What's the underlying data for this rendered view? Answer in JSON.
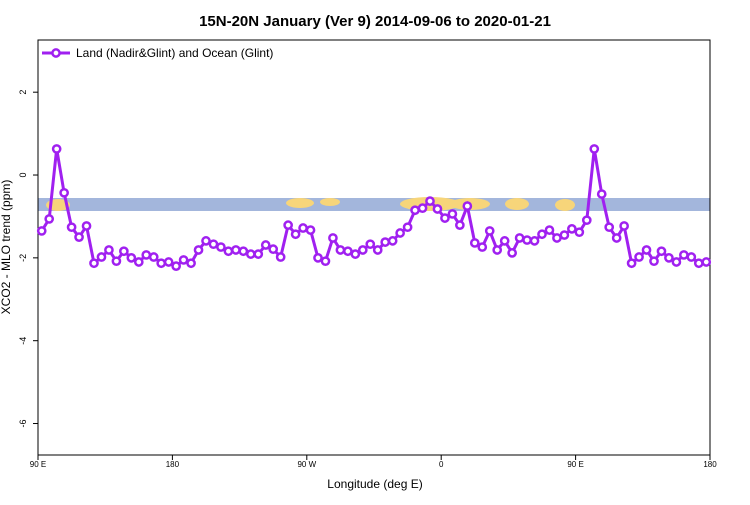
{
  "chart_data": {
    "type": "line",
    "title": "15N-20N January (Ver 9)   2014-09-06 to 2020-01-21",
    "x_label": "Longitude (deg E)",
    "y_label": "XCO2 - MLO trend (ppm)",
    "x": [
      92.5,
      97.5,
      102.5,
      107.5,
      112.5,
      117.5,
      122.5,
      127.5,
      132.5,
      137.5,
      142.5,
      147.5,
      152.5,
      157.5,
      162.5,
      167.5,
      172.5,
      177.5,
      182.5,
      187.5,
      192.5,
      197.5,
      202.5,
      207.5,
      212.5,
      217.5,
      222.5,
      227.5,
      232.5,
      237.5,
      242.5,
      247.5,
      252.5,
      257.5,
      262.5,
      267.5,
      272.5,
      277.5,
      282.5,
      287.5,
      292.5,
      297.5,
      302.5,
      307.5,
      312.5,
      317.5,
      322.5,
      327.5,
      332.5,
      337.5,
      342.5,
      347.5,
      352.5,
      357.5,
      362.5,
      367.5,
      372.5,
      377.5,
      382.5,
      387.5,
      392.5,
      397.5,
      402.5,
      407.5,
      412.5,
      417.5,
      422.5,
      427.5,
      432.5,
      437.5,
      442.5,
      447.5,
      452.5,
      457.5,
      462.5,
      467.5,
      472.5,
      477.5,
      482.5,
      487.5,
      492.5,
      497.5,
      502.5,
      507.5,
      512.5,
      517.5,
      522.5,
      527.5,
      532.5,
      537.5
    ],
    "series": [
      {
        "name": "Land (Nadir&Glint) and Ocean (Glint)",
        "color": "#a020f0",
        "values": [
          -1.35,
          -1.06,
          0.63,
          -0.43,
          -1.26,
          -1.5,
          -1.23,
          -2.13,
          -1.98,
          -1.81,
          -2.08,
          -1.84,
          -2.0,
          -2.1,
          -1.93,
          -1.98,
          -2.13,
          -2.1,
          -2.2,
          -2.05,
          -2.13,
          -1.81,
          -1.59,
          -1.67,
          -1.74,
          -1.84,
          -1.81,
          -1.84,
          -1.91,
          -1.91,
          -1.69,
          -1.79,
          -1.98,
          -1.21,
          -1.43,
          -1.28,
          -1.33,
          -2.0,
          -2.08,
          -1.52,
          -1.81,
          -1.84,
          -1.91,
          -1.81,
          -1.67,
          -1.81,
          -1.62,
          -1.59,
          -1.4,
          -1.26,
          -0.85,
          -0.8,
          -0.63,
          -0.82,
          -1.04,
          -0.94,
          -1.21,
          -0.75,
          -1.64,
          -1.74,
          -1.35,
          -1.81,
          -1.59,
          -1.88,
          -1.52,
          -1.57,
          -1.59,
          -1.43,
          -1.33,
          -1.52,
          -1.45,
          -1.3,
          -1.38,
          -1.09,
          0.63,
          -0.46,
          -1.26,
          -1.52,
          -1.23,
          -2.13,
          -1.98,
          -1.81,
          -2.08,
          -1.84,
          -2.0,
          -2.1,
          -1.93,
          -1.98,
          -2.13,
          -2.1
        ]
      }
    ],
    "xlim": [
      90,
      540
    ],
    "xticks": [
      {
        "value": 90,
        "label": "90 E"
      },
      180,
      {
        "value": 270,
        "label": "90 W"
      },
      {
        "value": 360,
        "label": "0"
      },
      {
        "value": 450,
        "label": "90 E"
      },
      {
        "value": 540,
        "label": "180"
      }
    ],
    "ylim": [
      -6.76,
      3.26
    ],
    "yticks": [
      -6,
      -4,
      -2,
      0,
      2
    ],
    "legend": "top-left"
  }
}
